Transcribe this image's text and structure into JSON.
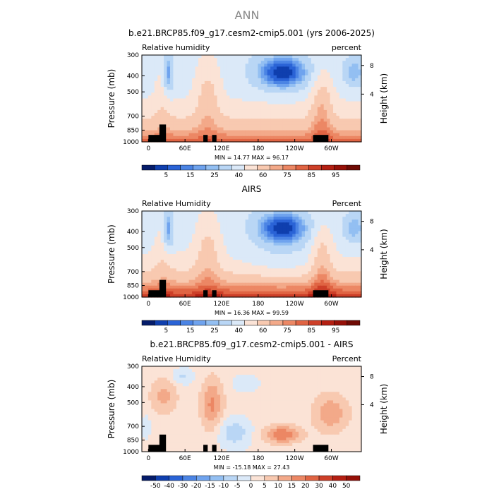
{
  "figure_title": "ANN",
  "chart_data": [
    {
      "type": "heatmap",
      "title": "b.e21.BRCP85.f09_g17.cesm2-cmip5.001 (yrs 2006-2025)",
      "left_label": "Relative humidity",
      "right_label": "percent",
      "ylabel": "Pressure (mb)",
      "ylabel_right": "Height (km)",
      "x_ticks": [
        "0",
        "60E",
        "120E",
        "180",
        "120W",
        "60W"
      ],
      "y_ticks": [
        "300",
        "400",
        "500",
        "700",
        "850",
        "1000"
      ],
      "y_ticks_right": [
        "8",
        "4"
      ],
      "stats": "MIN =   14.77   MAX =   96.17",
      "colorbar_labels": [
        "5",
        "15",
        "25",
        "40",
        "60",
        "75",
        "85",
        "95"
      ],
      "colorbar_colors": [
        "#051c6a",
        "#0f3fae",
        "#2a63d6",
        "#4b84e4",
        "#6fa3ee",
        "#93bff2",
        "#b9d6f5",
        "#dbe9f8",
        "#fbe3d6",
        "#f8c9b0",
        "#f3a989",
        "#ec8764",
        "#e06443",
        "#cd3f28",
        "#b41f12",
        "#961008",
        "#6f0a04"
      ],
      "fields": [
        "dry_tropics",
        "moist_low",
        "base"
      ]
    },
    {
      "type": "heatmap",
      "title": "AIRS",
      "left_label": "Relative Humidity",
      "right_label": "Percent",
      "ylabel": "Pressure (mb)",
      "ylabel_right": "Height (km)",
      "x_ticks": [
        "0",
        "60E",
        "120E",
        "180",
        "120W",
        "60W"
      ],
      "y_ticks": [
        "300",
        "400",
        "500",
        "700",
        "850",
        "1000"
      ],
      "y_ticks_right": [
        "8",
        "4"
      ],
      "stats": "MIN =   16.36   MAX =   99.59",
      "colorbar_labels": [
        "5",
        "15",
        "25",
        "40",
        "60",
        "75",
        "85",
        "95"
      ],
      "colorbar_colors": [
        "#051c6a",
        "#0f3fae",
        "#2a63d6",
        "#4b84e4",
        "#6fa3ee",
        "#93bff2",
        "#b9d6f5",
        "#dbe9f8",
        "#fbe3d6",
        "#f8c9b0",
        "#f3a989",
        "#ec8764",
        "#e06443",
        "#cd3f28",
        "#b41f12",
        "#961008",
        "#6f0a04"
      ],
      "fields": [
        "dry_tropics_obs",
        "moist_low_obs",
        "base"
      ]
    },
    {
      "type": "heatmap",
      "title": "b.e21.BRCP85.f09_g17.cesm2-cmip5.001 - AIRS",
      "left_label": "Relative Humidity",
      "right_label": "Percent",
      "ylabel": "Pressure (mb)",
      "ylabel_right": "Height (km)",
      "x_ticks": [
        "0",
        "60E",
        "120E",
        "180",
        "120W",
        "60W"
      ],
      "y_ticks": [
        "300",
        "400",
        "500",
        "700",
        "850",
        "1000"
      ],
      "y_ticks_right": [
        "8",
        "4"
      ],
      "stats": "MIN =  -15.18   MAX =   27.43",
      "colorbar_labels": [
        "-50",
        "-40",
        "-30",
        "-20",
        "-15",
        "-10",
        "-5",
        "0",
        "5",
        "10",
        "15",
        "20",
        "30",
        "40",
        "50"
      ],
      "colorbar_colors": [
        "#051c6a",
        "#0f3fae",
        "#2a63d6",
        "#4b84e4",
        "#6fa3ee",
        "#93bff2",
        "#b9d6f5",
        "#dbe9f8",
        "#fbe3d6",
        "#f8c9b0",
        "#f3a989",
        "#ec8764",
        "#e06443",
        "#cd3f28",
        "#b41f12",
        "#961008"
      ],
      "fields": [
        "diff"
      ]
    }
  ]
}
